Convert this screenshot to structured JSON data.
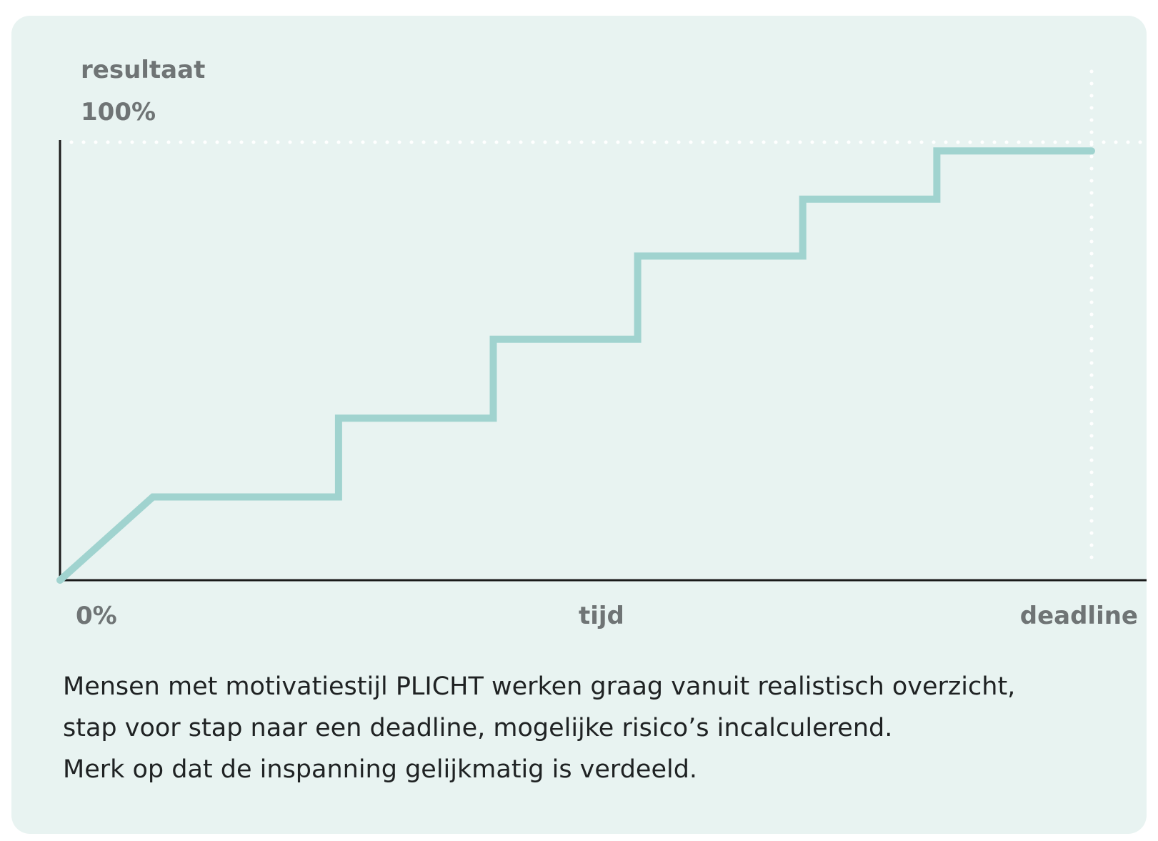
{
  "chart_data": {
    "type": "line",
    "step": true,
    "ylabel": "resultaat",
    "y_top_label": "100%",
    "origin_label": "0%",
    "xlabel": "tijd",
    "x_end_label": "deadline",
    "xlim": [
      0,
      1
    ],
    "ylim": [
      0,
      1
    ],
    "grid": false,
    "reference_lines": [
      {
        "orientation": "horizontal",
        "y": 1.0,
        "style": "dotted"
      },
      {
        "orientation": "vertical",
        "x": 1.0,
        "style": "dotted"
      }
    ],
    "series": [
      {
        "x": [
          0.0,
          0.09,
          0.27,
          0.27,
          0.42,
          0.42,
          0.56,
          0.56,
          0.72,
          0.72,
          0.85,
          0.85,
          1.0
        ],
        "y": [
          0.0,
          0.19,
          0.19,
          0.37,
          0.37,
          0.55,
          0.55,
          0.74,
          0.74,
          0.87,
          0.87,
          0.98,
          0.98
        ],
        "color": "#a0d3cf"
      }
    ]
  },
  "caption": {
    "lines": [
      "Mensen met motivatiestijl PLICHT werken graag vanuit realistisch overzicht,",
      "stap voor stap naar een deadline, mogelijke risico’s incalculerend.",
      "Merk op dat de inspanning gelijkmatig is verdeeld."
    ]
  },
  "colors": {
    "background": "#e8f3f1",
    "axis": "#1a1a1a",
    "line": "#a0d3cf",
    "label": "#6f7475",
    "dotted": "#ffffff"
  }
}
